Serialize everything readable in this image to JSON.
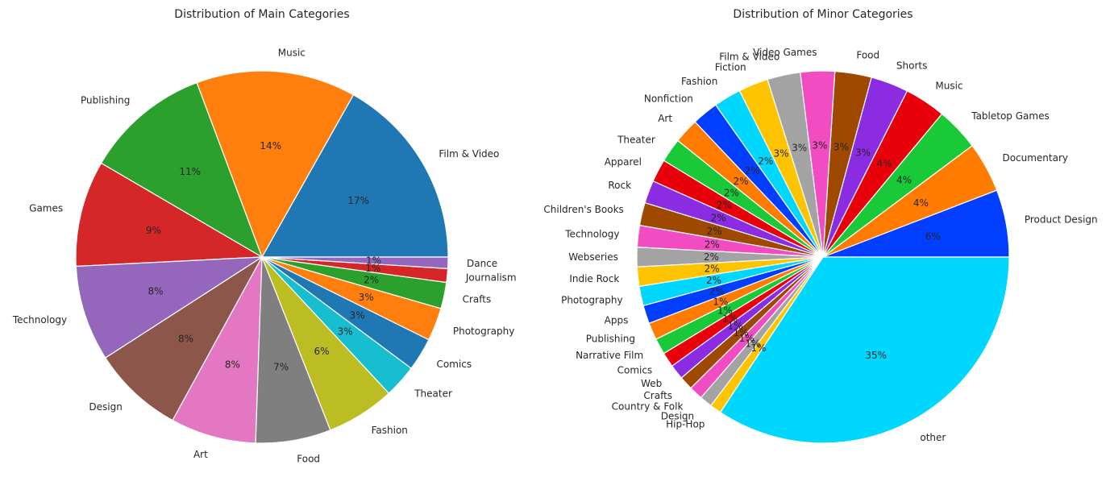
{
  "chart_data": [
    {
      "type": "pie",
      "title": "Distribution of Main Categories",
      "start_angle": 0,
      "direction": "counterclockwise",
      "slices": [
        {
          "label": "Film & Video",
          "value": 17,
          "pct_label": "17%",
          "color": "#1f77b4"
        },
        {
          "label": "Music",
          "value": 14,
          "pct_label": "14%",
          "color": "#ff7f0e"
        },
        {
          "label": "Publishing",
          "value": 11,
          "pct_label": "11%",
          "color": "#2ca02c"
        },
        {
          "label": "Games",
          "value": 9.3,
          "pct_label": "9%",
          "color": "#d62728"
        },
        {
          "label": "Technology",
          "value": 8.4,
          "pct_label": "8%",
          "color": "#9467bd"
        },
        {
          "label": "Design",
          "value": 8.0,
          "pct_label": "8%",
          "color": "#8c564b"
        },
        {
          "label": "Art",
          "value": 7.5,
          "pct_label": "8%",
          "color": "#e377c2"
        },
        {
          "label": "Food",
          "value": 6.6,
          "pct_label": "7%",
          "color": "#7f7f7f"
        },
        {
          "label": "Fashion",
          "value": 6.0,
          "pct_label": "6%",
          "color": "#bcbd22"
        },
        {
          "label": "Theater",
          "value": 2.9,
          "pct_label": "3%",
          "color": "#17becf"
        },
        {
          "label": "Comics",
          "value": 2.9,
          "pct_label": "3%",
          "color": "#1f77b4"
        },
        {
          "label": "Photography",
          "value": 2.9,
          "pct_label": "3%",
          "color": "#ff7f0e"
        },
        {
          "label": "Crafts",
          "value": 2.3,
          "pct_label": "2%",
          "color": "#2ca02c"
        },
        {
          "label": "Journalism",
          "value": 1.2,
          "pct_label": "1%",
          "color": "#d62728"
        },
        {
          "label": "Dance",
          "value": 1.0,
          "pct_label": "1%",
          "color": "#9467bd"
        }
      ]
    },
    {
      "type": "pie",
      "title": "Distribution of Minor Categories",
      "start_angle": 0,
      "direction": "counterclockwise",
      "slices": [
        {
          "label": "Product Design",
          "value": 5.9,
          "pct_label": "6%",
          "color": "#023eff"
        },
        {
          "label": "Documentary",
          "value": 4.4,
          "pct_label": "4%",
          "color": "#ff7c00"
        },
        {
          "label": "Tabletop Games",
          "value": 3.8,
          "pct_label": "4%",
          "color": "#1ac938"
        },
        {
          "label": "Music",
          "value": 3.6,
          "pct_label": "4%",
          "color": "#e8000b"
        },
        {
          "label": "Shorts",
          "value": 3.3,
          "pct_label": "3%",
          "color": "#8b2be2"
        },
        {
          "label": "Food",
          "value": 3.2,
          "pct_label": "3%",
          "color": "#9f4800"
        },
        {
          "label": "Video Games",
          "value": 3.0,
          "pct_label": "3%",
          "color": "#f14cc1"
        },
        {
          "label": "Film & Video",
          "value": 2.9,
          "pct_label": "3%",
          "color": "#a3a3a3"
        },
        {
          "label": "Fiction",
          "value": 2.6,
          "pct_label": "3%",
          "color": "#ffc400"
        },
        {
          "label": "Fashion",
          "value": 2.4,
          "pct_label": "2%",
          "color": "#00d7ff"
        },
        {
          "label": "Nonfiction",
          "value": 2.3,
          "pct_label": "2%",
          "color": "#023eff"
        },
        {
          "label": "Art",
          "value": 2.2,
          "pct_label": "2%",
          "color": "#ff7c00"
        },
        {
          "label": "Theater",
          "value": 2.1,
          "pct_label": "2%",
          "color": "#1ac938"
        },
        {
          "label": "Apparel",
          "value": 2.0,
          "pct_label": "2%",
          "color": "#e8000b"
        },
        {
          "label": "Rock",
          "value": 2.0,
          "pct_label": "2%",
          "color": "#8b2be2"
        },
        {
          "label": "Children's Books",
          "value": 2.0,
          "pct_label": "2%",
          "color": "#9f4800"
        },
        {
          "label": "Technology",
          "value": 1.9,
          "pct_label": "2%",
          "color": "#f14cc1"
        },
        {
          "label": "Webseries",
          "value": 1.7,
          "pct_label": "2%",
          "color": "#a3a3a3"
        },
        {
          "label": "Indie Rock",
          "value": 1.7,
          "pct_label": "2%",
          "color": "#ffc400"
        },
        {
          "label": "Photography",
          "value": 1.7,
          "pct_label": "2%",
          "color": "#00d7ff"
        },
        {
          "label": "Apps",
          "value": 1.6,
          "pct_label": "2%",
          "color": "#023eff"
        },
        {
          "label": "Publishing",
          "value": 1.5,
          "pct_label": "1%",
          "color": "#ff7c00"
        },
        {
          "label": "Narrative Film",
          "value": 1.4,
          "pct_label": "1%",
          "color": "#1ac938"
        },
        {
          "label": "Comics",
          "value": 1.3,
          "pct_label": "1%",
          "color": "#e8000b"
        },
        {
          "label": "Web",
          "value": 1.3,
          "pct_label": "1%",
          "color": "#8b2be2"
        },
        {
          "label": "Crafts",
          "value": 1.2,
          "pct_label": "1%",
          "color": "#9f4800"
        },
        {
          "label": "Country & Folk",
          "value": 1.2,
          "pct_label": "1%",
          "color": "#f14cc1"
        },
        {
          "label": "Design",
          "value": 1.1,
          "pct_label": "1%",
          "color": "#a3a3a3"
        },
        {
          "label": "Hip-Hop",
          "value": 1.0,
          "pct_label": "1%",
          "color": "#ffc400"
        },
        {
          "label": "other",
          "value": 34.6,
          "pct_label": "35%",
          "color": "#00d7ff"
        }
      ]
    }
  ]
}
